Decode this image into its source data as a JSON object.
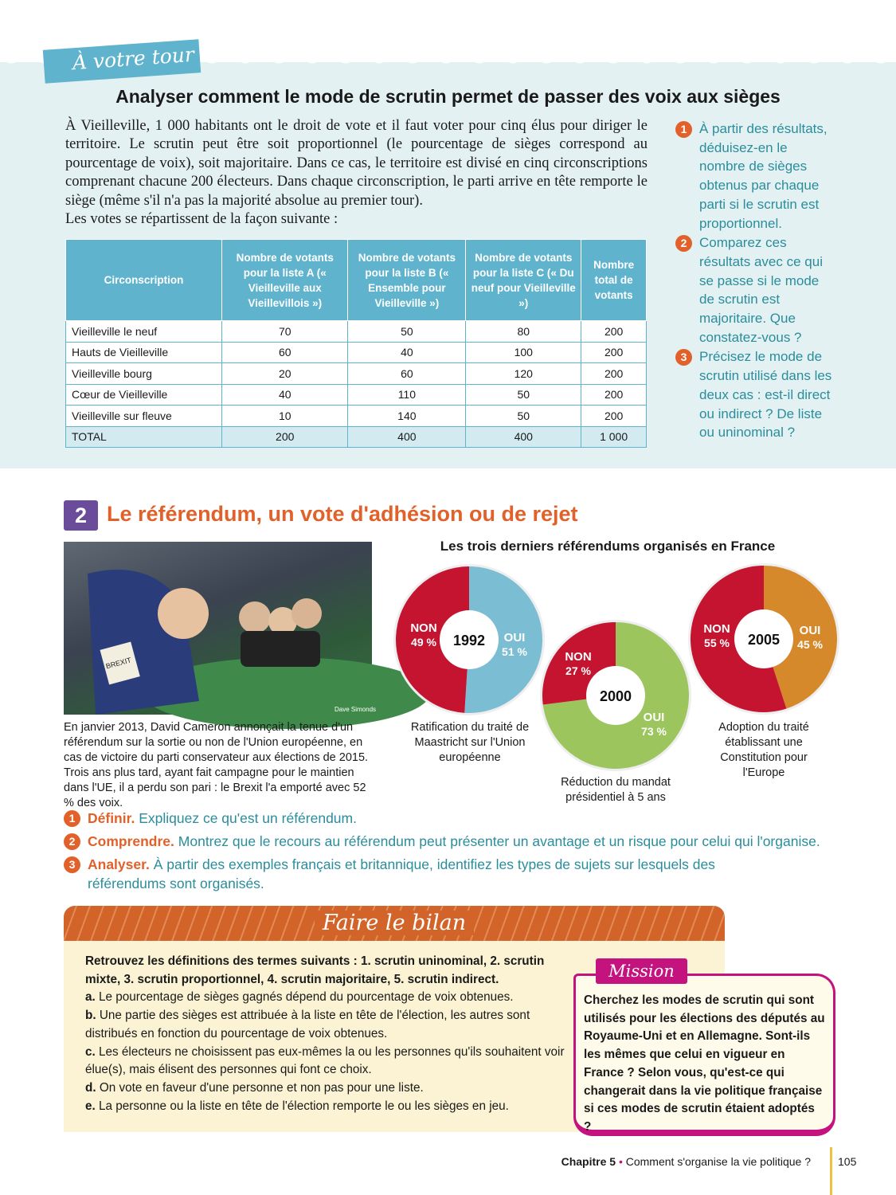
{
  "activity": {
    "banner": "À votre tour",
    "title": "Analyser comment le mode de scrutin permet de passer des voix aux sièges",
    "intro": "À Vieilleville, 1 000 habitants ont le droit de vote et il faut voter pour cinq élus pour diriger le territoire. Le scrutin peut être soit proportionnel (le pourcentage de sièges correspond au pourcentage de voix), soit majoritaire. Dans ce cas, le territoire est divisé en cinq circonscriptions comprenant chacune 200 électeurs. Dans chaque circonscription, le parti arrive en tête remporte le siège (même s'il n'a pas la majorité absolue au premier tour).",
    "intro2": "Les votes se répartissent de la façon suivante :",
    "table": {
      "headers": [
        "Circonscription",
        "Nombre de votants pour la liste A (« Vieilleville aux Vieillevillois »)",
        "Nombre de votants pour la liste B (« Ensemble pour Vieilleville »)",
        "Nombre de votants pour la liste C (« Du neuf pour Vieilleville »)",
        "Nombre total de votants"
      ],
      "rows": [
        [
          "Vieilleville le neuf",
          "70",
          "50",
          "80",
          "200"
        ],
        [
          "Hauts de Vieilleville",
          "60",
          "40",
          "100",
          "200"
        ],
        [
          "Vieilleville bourg",
          "20",
          "60",
          "120",
          "200"
        ],
        [
          "Cœur de Vieilleville",
          "40",
          "110",
          "50",
          "200"
        ],
        [
          "Vieilleville sur fleuve",
          "10",
          "140",
          "50",
          "200"
        ],
        [
          "TOTAL",
          "200",
          "400",
          "400",
          "1 000"
        ]
      ]
    },
    "questions": [
      {
        "n": "1",
        "text": "À partir des résultats, déduisez-en le nombre de sièges obtenus par chaque parti si le scrutin est proportionnel."
      },
      {
        "n": "2",
        "text": "Comparez ces résultats avec ce qui se passe si le mode de scrutin est majoritaire. Que constatez-vous ?"
      },
      {
        "n": "3",
        "text": "Précisez le mode de scrutin utilisé dans les deux cas : est-il direct ou indirect ? De liste ou uninominal ?"
      }
    ]
  },
  "section2": {
    "number": "2",
    "title": "Le référendum, un vote d'adhésion ou de rejet",
    "cartoon": {
      "credit": "Dave Simonds",
      "card_text": "BREXIT"
    },
    "caption": "En janvier 2013, David Cameron annonçait la tenue d'un référendum sur la sortie ou non de l'Union européenne, en cas de victoire du parti conservateur aux élections de 2015. Trois ans plus tard, ayant fait campagne pour le maintien dans l'UE, il a perdu son pari : le Brexit l'a emporté avec 52 % des voix.",
    "activities": [
      {
        "n": "1",
        "label": "Définir.",
        "text": "Expliquez ce qu'est un référendum."
      },
      {
        "n": "2",
        "label": "Comprendre.",
        "text": "Montrez que le recours au référendum peut présenter un avantage et un risque pour celui qui l'organise."
      },
      {
        "n": "3",
        "label": "Analyser.",
        "text": "À partir des exemples français et britannique, identifiez les types de sujets sur lesquels des référendums sont organisés."
      }
    ]
  },
  "chart_data": {
    "type": "pie",
    "title": "Les trois derniers référendums organisés en France",
    "charts": [
      {
        "year": "1992",
        "caption": "Ratification du traité de Maastricht sur l'Union européenne",
        "slices": [
          {
            "label": "OUI",
            "value": 51,
            "display": "51 %",
            "color": "#7bbdd2"
          },
          {
            "label": "NON",
            "value": 49,
            "display": "49 %",
            "color": "#c4142f"
          }
        ]
      },
      {
        "year": "2000",
        "caption": "Réduction du mandat présidentiel à 5 ans",
        "slices": [
          {
            "label": "OUI",
            "value": 73,
            "display": "73 %",
            "color": "#9cc55e"
          },
          {
            "label": "NON",
            "value": 27,
            "display": "27 %",
            "color": "#c4142f"
          }
        ]
      },
      {
        "year": "2005",
        "caption": "Adoption du traité établissant une Constitution pour l'Europe",
        "slices": [
          {
            "label": "OUI",
            "value": 45,
            "display": "45 %",
            "color": "#d6892a"
          },
          {
            "label": "NON",
            "value": 55,
            "display": "55 %",
            "color": "#c4142f"
          }
        ]
      }
    ]
  },
  "bilan": {
    "title": "Faire le bilan",
    "intro": "Retrouvez les définitions des termes suivants : 1. scrutin uninominal, 2. scrutin mixte, 3. scrutin proportionnel, 4. scrutin majoritaire, 5. scrutin indirect.",
    "items": [
      {
        "l": "a.",
        "t": "Le pourcentage de sièges gagnés dépend du pourcentage de voix obtenues."
      },
      {
        "l": "b.",
        "t": "Une partie des sièges est attribuée à la liste en tête de l'élection, les autres sont distribués en fonction du pourcentage de voix obtenues."
      },
      {
        "l": "c.",
        "t": "Les électeurs ne choisissent pas eux-mêmes la ou les personnes qu'ils souhaitent voir élue(s), mais élisent des personnes qui font ce choix."
      },
      {
        "l": "d.",
        "t": "On vote en faveur d'une personne et non pas pour une liste."
      },
      {
        "l": "e.",
        "t": "La personne ou la liste en tête de l'élection remporte le ou les sièges en jeu."
      }
    ]
  },
  "mission": {
    "title": "Mission",
    "text": "Cherchez les modes de scrutin qui sont utilisés pour les élections des députés au Royaume-Uni et en Allemagne. Sont-ils les mêmes que celui en vigueur en France ? Selon vous, qu'est-ce qui changerait dans la vie politique française si ces modes de scrutin étaient adoptés ?"
  },
  "footer": {
    "chapter": "Chapitre 5",
    "separator": " • ",
    "subtitle": "Comment s'organise la vie politique ?",
    "page": "105"
  }
}
